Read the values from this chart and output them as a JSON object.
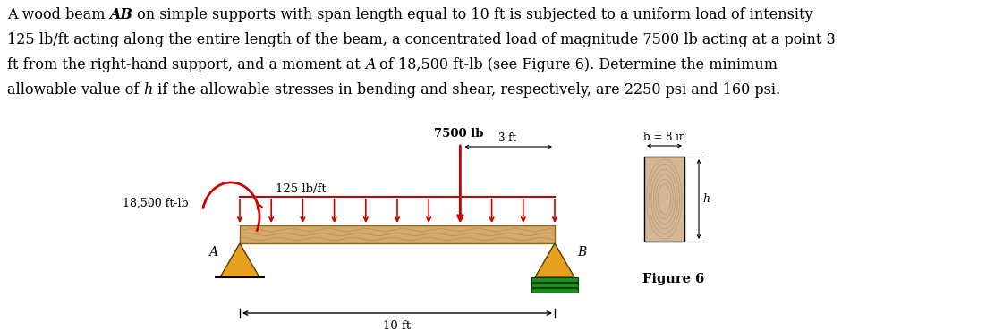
{
  "bg": "#ffffff",
  "beam_color": "#D4A96A",
  "beam_edge": "#8B6914",
  "support_color": "#E8A020",
  "load_color": "#CC0000",
  "moment_color": "#CC0000",
  "support_B_color": "#228B22",
  "wood_cross_color": "#D4B896",
  "figure_label": "Figure 6",
  "label_A": "A",
  "label_B": "B",
  "label_7500": "7500 lb",
  "label_18500": "18,500 ft-lb",
  "label_125": "125 lb/ft",
  "label_3ft": "3 ft",
  "label_10ft": "10 ft",
  "label_b": "b = 8 in",
  "label_h": "h"
}
